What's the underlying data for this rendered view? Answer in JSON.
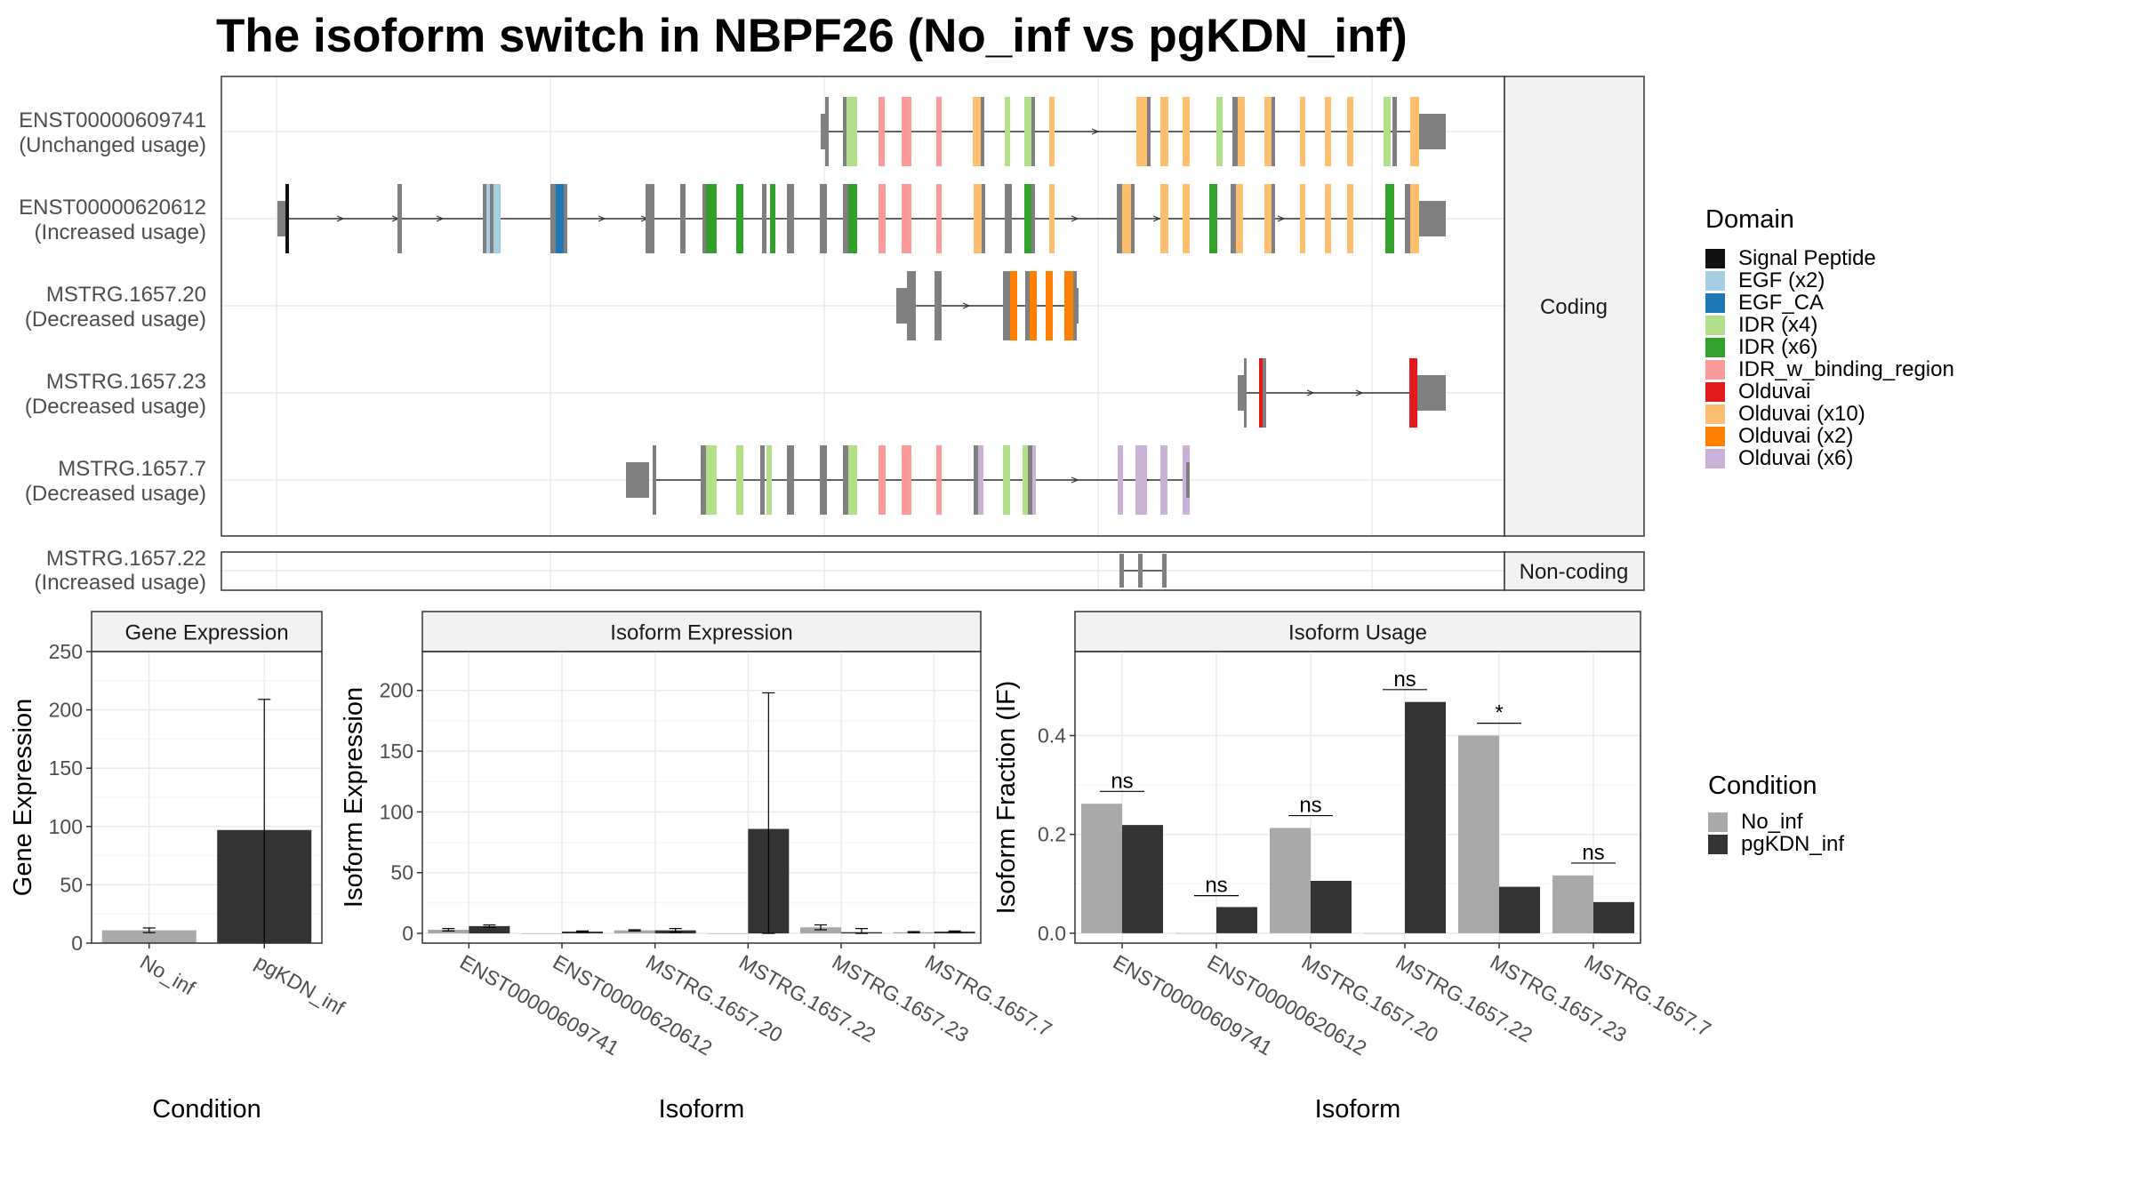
{
  "title": "The isoform switch in NBPF26 (No_inf vs pgKDN_inf)",
  "structure": {
    "coding_label": "Coding",
    "noncoding_label": "Non-coding",
    "isoforms": [
      {
        "id": "ENST00000609741",
        "usage": "(Unchanged usage)"
      },
      {
        "id": "ENST00000620612",
        "usage": "(Increased usage)"
      },
      {
        "id": "MSTRG.1657.20",
        "usage": "(Decreased usage)"
      },
      {
        "id": "MSTRG.1657.23",
        "usage": "(Decreased usage)"
      },
      {
        "id": "MSTRG.1657.7",
        "usage": "(Decreased usage)"
      },
      {
        "id": "MSTRG.1657.22",
        "usage": "(Increased usage)"
      }
    ]
  },
  "domain_legend": {
    "title": "Domain",
    "items": [
      {
        "label": "Signal Peptide",
        "color": "#111111"
      },
      {
        "label": "EGF (x2)",
        "color": "#a6cee3"
      },
      {
        "label": "EGF_CA",
        "color": "#1f78b4"
      },
      {
        "label": "IDR (x4)",
        "color": "#b2df8a"
      },
      {
        "label": "IDR (x6)",
        "color": "#33a02c"
      },
      {
        "label": "IDR_w_binding_region",
        "color": "#fb9a99"
      },
      {
        "label": "Olduvai",
        "color": "#e31a1c"
      },
      {
        "label": "Olduvai (x10)",
        "color": "#fdbf6f"
      },
      {
        "label": "Olduvai (x2)",
        "color": "#ff7f00"
      },
      {
        "label": "Olduvai (x6)",
        "color": "#cab2d6"
      }
    ]
  },
  "condition_legend": {
    "title": "Condition",
    "items": [
      {
        "label": "No_inf",
        "color": "#a9a9a9"
      },
      {
        "label": "pgKDN_inf",
        "color": "#333333"
      }
    ]
  },
  "chart_data": [
    {
      "type": "bar",
      "title": "Gene Expression",
      "xlabel": "Condition",
      "ylabel": "Gene Expression",
      "categories": [
        "No_inf",
        "pgKDN_inf"
      ],
      "values": [
        11,
        97
      ],
      "error_low": [
        9,
        0
      ],
      "error_high": [
        13,
        209
      ],
      "ylim": [
        0,
        250
      ],
      "yticks": [
        0,
        50,
        100,
        150,
        200,
        250
      ]
    },
    {
      "type": "bar",
      "title": "Isoform Expression",
      "xlabel": "Isoform",
      "ylabel": "Isoform Expression",
      "categories": [
        "ENST00000609741",
        "ENST00000620612",
        "MSTRG.1657.20",
        "MSTRG.1657.22",
        "MSTRG.1657.23",
        "MSTRG.1657.7"
      ],
      "series": [
        {
          "name": "No_inf",
          "values": [
            3,
            0,
            2.5,
            0,
            5,
            1
          ],
          "error_low": [
            2,
            0,
            2,
            0,
            3,
            0.5
          ],
          "error_high": [
            4,
            0,
            3,
            0,
            7,
            1.5
          ]
        },
        {
          "name": "pgKDN_inf",
          "values": [
            6,
            1.5,
            2.5,
            86,
            1,
            1.5
          ],
          "error_low": [
            5,
            1,
            1,
            0,
            0,
            1
          ],
          "error_high": [
            7,
            2,
            4,
            198,
            4,
            2
          ]
        }
      ],
      "ylim": [
        -8,
        232
      ],
      "yticks": [
        0,
        50,
        100,
        150,
        200
      ]
    },
    {
      "type": "bar",
      "title": "Isoform Usage",
      "xlabel": "Isoform",
      "ylabel": "Isoform Fraction (IF)",
      "categories": [
        "ENST00000609741",
        "ENST00000620612",
        "MSTRG.1657.20",
        "MSTRG.1657.22",
        "MSTRG.1657.23",
        "MSTRG.1657.7"
      ],
      "series": [
        {
          "name": "No_inf",
          "values": [
            0.262,
            0,
            0.213,
            0,
            0.4,
            0.117
          ]
        },
        {
          "name": "pgKDN_inf",
          "values": [
            0.219,
            0.053,
            0.106,
            0.468,
            0.094,
            0.063
          ]
        }
      ],
      "significance": [
        "ns",
        "ns",
        "ns",
        "ns",
        "*",
        "ns"
      ],
      "significance_level": [
        0.287,
        0.076,
        0.238,
        0.493,
        0.425,
        0.142
      ],
      "ylim": [
        -0.02,
        0.57
      ],
      "yticks": [
        0.0,
        0.2,
        0.4
      ],
      "ytick_labels": [
        "0.0",
        "0.2",
        "0.4"
      ]
    }
  ]
}
